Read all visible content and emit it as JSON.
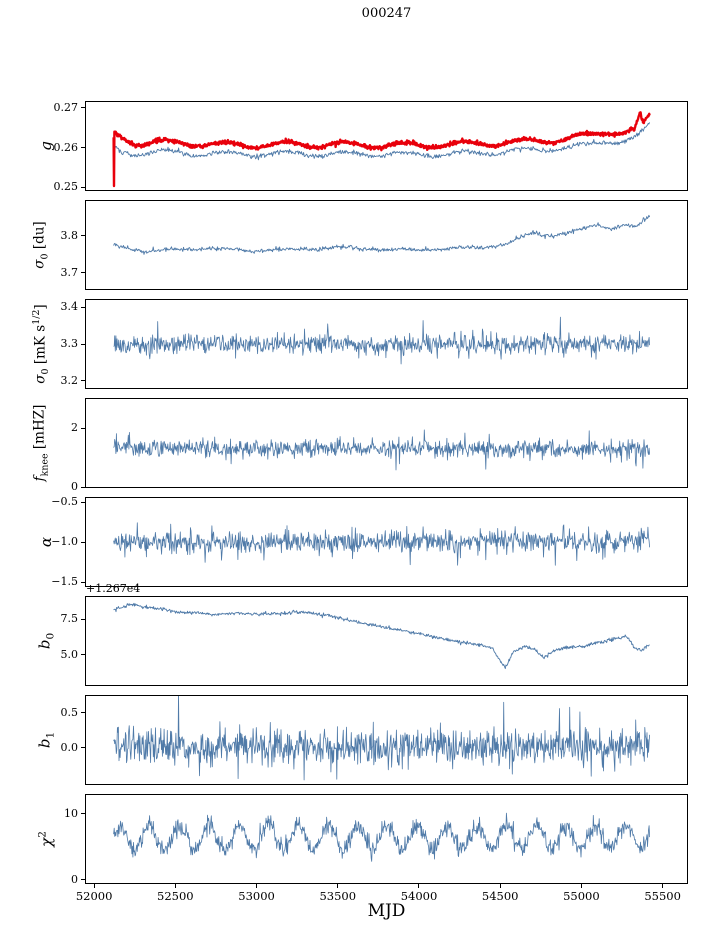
{
  "title": "000247",
  "chart_data": {
    "type": "line",
    "title": "000247",
    "xlabel": "MJD",
    "xlim": [
      51950,
      55650
    ],
    "xticks": [
      52000,
      52500,
      53000,
      53500,
      54000,
      54500,
      55000,
      55500
    ],
    "xtick_labels": [
      "52000",
      "52500",
      "53000",
      "53500",
      "54000",
      "54500",
      "55000",
      "55500"
    ],
    "data_xrange": [
      52120,
      55420
    ],
    "axis_color": "#000000",
    "line_color": "#4f7aa8",
    "highlight_color": "#e8000b",
    "panels": [
      {
        "name": "g",
        "ylabel_parts": [
          {
            "t": "g"
          }
        ],
        "ylim": [
          0.2493,
          0.2715
        ],
        "yticks": [
          0.25,
          0.26,
          0.27
        ],
        "ytick_labels": [
          "0.25",
          "0.26",
          "0.27"
        ],
        "series": [
          {
            "name": "g-blue",
            "color": "#4f7aa8",
            "width": 0.9,
            "n": 760,
            "seed": 101,
            "sd": 0.0003,
            "osc": {
              "period": 365,
              "amp": 0.0006,
              "phase": 2.17
            },
            "trend": [
              [
                52120,
                0.2598
              ],
              [
                52160,
                0.259
              ],
              [
                52250,
                0.2585
              ],
              [
                52400,
                0.2589
              ],
              [
                52600,
                0.2586
              ],
              [
                52900,
                0.2583
              ],
              [
                53200,
                0.2585
              ],
              [
                53600,
                0.2584
              ],
              [
                54000,
                0.2583
              ],
              [
                54300,
                0.2586
              ],
              [
                54600,
                0.2591
              ],
              [
                54850,
                0.2598
              ],
              [
                55050,
                0.2607
              ],
              [
                55150,
                0.2618
              ],
              [
                55250,
                0.2615
              ],
              [
                55330,
                0.2622
              ],
              [
                55420,
                0.2658
              ]
            ]
          },
          {
            "name": "g-red",
            "color": "#e8000b",
            "width": 2.4,
            "n": 1300,
            "seed": 102,
            "sd": 0.00025,
            "osc": {
              "period": 365,
              "amp": 0.0007,
              "phase": 2.17
            },
            "spikes": [
              {
                "x": 52122,
                "v": 0.2503
              },
              {
                "x": 55362,
                "v": 0.2686
              }
            ],
            "trend": [
              [
                52120,
                0.2622
              ],
              [
                52122,
                0.2504
              ],
              [
                52125,
                0.2635
              ],
              [
                52150,
                0.2628
              ],
              [
                52250,
                0.2612
              ],
              [
                52400,
                0.2613
              ],
              [
                52600,
                0.261
              ],
              [
                52900,
                0.2606
              ],
              [
                53200,
                0.2608
              ],
              [
                53600,
                0.2607
              ],
              [
                54000,
                0.2606
              ],
              [
                54300,
                0.2609
              ],
              [
                54600,
                0.2613
              ],
              [
                54850,
                0.262
              ],
              [
                55050,
                0.2629
              ],
              [
                55150,
                0.2641
              ],
              [
                55250,
                0.2638
              ],
              [
                55330,
                0.2645
              ],
              [
                55360,
                0.2683
              ],
              [
                55380,
                0.2655
              ],
              [
                55420,
                0.268
              ]
            ]
          }
        ]
      },
      {
        "name": "sigma0-du",
        "ylabel_parts": [
          {
            "t": "σ"
          },
          {
            "t": "0",
            "sub": true
          },
          {
            "t": " [du]"
          }
        ],
        "ylim": [
          3.655,
          3.895
        ],
        "yticks": [
          3.7,
          3.8
        ],
        "ytick_labels": [
          "3.7",
          "3.8"
        ],
        "series": [
          {
            "name": "sigma0-du",
            "color": "#4f7aa8",
            "width": 0.9,
            "n": 760,
            "seed": 201,
            "sd": 0.0028,
            "osc": {
              "period": 365,
              "amp": 0.002,
              "phase": 2.17
            },
            "trend": [
              [
                52120,
                3.775
              ],
              [
                52200,
                3.768
              ],
              [
                52320,
                3.757
              ],
              [
                52500,
                3.762
              ],
              [
                52700,
                3.766
              ],
              [
                53000,
                3.76
              ],
              [
                53200,
                3.763
              ],
              [
                53500,
                3.768
              ],
              [
                53800,
                3.763
              ],
              [
                54000,
                3.762
              ],
              [
                54200,
                3.766
              ],
              [
                54400,
                3.77
              ],
              [
                54550,
                3.78
              ],
              [
                54700,
                3.808
              ],
              [
                54800,
                3.8
              ],
              [
                54900,
                3.808
              ],
              [
                55000,
                3.816
              ],
              [
                55100,
                3.832
              ],
              [
                55180,
                3.818
              ],
              [
                55260,
                3.832
              ],
              [
                55340,
                3.825
              ],
              [
                55420,
                3.852
              ]
            ]
          }
        ]
      },
      {
        "name": "sigma0-mks",
        "ylabel_parts": [
          {
            "t": "σ"
          },
          {
            "t": "0",
            "sub": true
          },
          {
            "t": " [mK s"
          },
          {
            "t": "1/2",
            "sup": true
          },
          {
            "t": "]"
          }
        ],
        "ylim": [
          3.18,
          3.42
        ],
        "yticks": [
          3.2,
          3.3,
          3.4
        ],
        "ytick_labels": [
          "3.2",
          "3.3",
          "3.4"
        ],
        "series": [
          {
            "name": "sigma0-mks",
            "color": "#4f7aa8",
            "width": 0.8,
            "n": 950,
            "seed": 301,
            "sd": 0.013,
            "spike_prob": 0.008,
            "spike_amp": 0.04,
            "trend": [
              [
                52120,
                3.295
              ],
              [
                52600,
                3.3
              ],
              [
                55000,
                3.3
              ],
              [
                55420,
                3.305
              ]
            ]
          }
        ]
      },
      {
        "name": "fknee",
        "ylabel_parts": [
          {
            "t": "f"
          },
          {
            "t": "knee",
            "sub": true
          },
          {
            "t": " [mHZ]"
          }
        ],
        "ylim": [
          0,
          3.0
        ],
        "yticks": [
          0,
          2
        ],
        "ytick_labels": [
          "0",
          "2"
        ],
        "series": [
          {
            "name": "fknee",
            "color": "#4f7aa8",
            "width": 0.8,
            "n": 950,
            "seed": 401,
            "sd": 0.15,
            "spike_prob": 0.02,
            "spike_amp": 0.45,
            "trend": [
              [
                52120,
                1.33
              ],
              [
                53500,
                1.31
              ],
              [
                55420,
                1.3
              ]
            ]
          }
        ]
      },
      {
        "name": "alpha",
        "ylabel_parts": [
          {
            "t": "α"
          }
        ],
        "ylim": [
          -1.55,
          -0.45
        ],
        "yticks": [
          -1.5,
          -1.0,
          -0.5
        ],
        "ytick_labels": [
          "−1.5",
          "−1.0",
          "−0.5"
        ],
        "series": [
          {
            "name": "alpha",
            "color": "#4f7aa8",
            "width": 0.8,
            "n": 950,
            "seed": 501,
            "sd": 0.07,
            "spike_prob": 0.012,
            "spike_amp": 0.2,
            "trend": [
              [
                52120,
                -1.0
              ],
              [
                53500,
                -1.0
              ],
              [
                55420,
                -0.99
              ]
            ]
          }
        ]
      },
      {
        "name": "b0",
        "ylabel_parts": [
          {
            "t": "b"
          },
          {
            "t": "0",
            "sub": true
          }
        ],
        "offset_text": "+1.267e4",
        "ylim": [
          2.9,
          9.05
        ],
        "yticks": [
          5.0,
          7.5
        ],
        "ytick_labels": [
          "5.0",
          "7.5"
        ],
        "series": [
          {
            "name": "b0",
            "color": "#4f7aa8",
            "width": 0.9,
            "n": 900,
            "seed": 601,
            "sd": 0.06,
            "trend": [
              [
                52120,
                8.15
              ],
              [
                52170,
                8.35
              ],
              [
                52230,
                8.55
              ],
              [
                52300,
                8.35
              ],
              [
                52400,
                8.25
              ],
              [
                52500,
                8.0
              ],
              [
                52620,
                7.95
              ],
              [
                52750,
                7.8
              ],
              [
                52870,
                7.95
              ],
              [
                53000,
                7.85
              ],
              [
                53120,
                7.9
              ],
              [
                53250,
                8.0
              ],
              [
                53350,
                7.9
              ],
              [
                53450,
                7.75
              ],
              [
                53600,
                7.35
              ],
              [
                53750,
                7.0
              ],
              [
                53900,
                6.7
              ],
              [
                54050,
                6.35
              ],
              [
                54200,
                6.0
              ],
              [
                54350,
                5.75
              ],
              [
                54450,
                5.5
              ],
              [
                54500,
                4.6
              ],
              [
                54530,
                4.1
              ],
              [
                54580,
                5.2
              ],
              [
                54650,
                5.6
              ],
              [
                54720,
                5.3
              ],
              [
                54770,
                4.8
              ],
              [
                54830,
                5.3
              ],
              [
                54900,
                5.5
              ],
              [
                55000,
                5.6
              ],
              [
                55100,
                5.85
              ],
              [
                55200,
                6.1
              ],
              [
                55280,
                6.3
              ],
              [
                55330,
                5.5
              ],
              [
                55370,
                5.3
              ],
              [
                55420,
                5.75
              ]
            ]
          }
        ]
      },
      {
        "name": "b1",
        "ylabel_parts": [
          {
            "t": "b"
          },
          {
            "t": "1",
            "sub": true
          }
        ],
        "ylim": [
          -0.52,
          0.74
        ],
        "yticks": [
          0.0,
          0.5
        ],
        "ytick_labels": [
          "0.0",
          "0.5"
        ],
        "series": [
          {
            "name": "b1",
            "color": "#4f7aa8",
            "width": 0.8,
            "n": 1000,
            "seed": 701,
            "sd": 0.13,
            "spike_prob": 0.02,
            "spike_amp": 0.35,
            "spikes": [
              {
                "x": 54520,
                "v": 0.65
              }
            ],
            "trend": [
              [
                52120,
                0.02
              ],
              [
                53500,
                0.0
              ],
              [
                55420,
                0.02
              ]
            ]
          }
        ]
      },
      {
        "name": "chi2",
        "ylabel_parts": [
          {
            "t": "χ"
          },
          {
            "t": "2",
            "sup": true
          }
        ],
        "ylim": [
          -0.5,
          12.8
        ],
        "yticks": [
          0,
          10
        ],
        "ytick_labels": [
          "0",
          "10"
        ],
        "series": [
          {
            "name": "chi2",
            "color": "#4f7aa8",
            "width": 0.8,
            "n": 1000,
            "seed": 801,
            "sd": 0.7,
            "spike_prob": 0.01,
            "spike_amp": 1.8,
            "osc": {
              "period": 183,
              "amp": 1.8,
              "phase": 0.2
            },
            "trend": [
              [
                52120,
                6.2
              ],
              [
                53000,
                6.45
              ],
              [
                54000,
                6.3
              ],
              [
                55420,
                6.5
              ]
            ]
          }
        ]
      }
    ]
  }
}
